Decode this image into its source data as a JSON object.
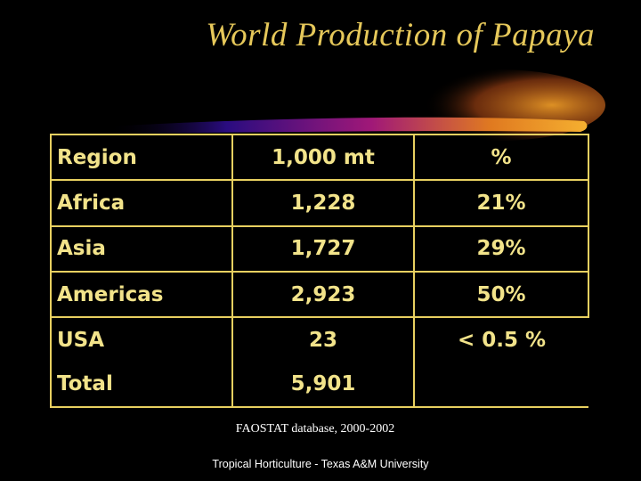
{
  "slide": {
    "title": "World Production of Papaya",
    "source": "FAOSTAT database, 2000-2002",
    "footer": "Tropical Horticulture - Texas A&M University"
  },
  "table": {
    "headers": [
      "Region",
      "1,000 mt",
      "%"
    ],
    "rows": [
      {
        "region": "Africa",
        "amount": "1,228",
        "percent": "21%"
      },
      {
        "region": "Asia",
        "amount": "1,727",
        "percent": "29%"
      },
      {
        "region": "Americas",
        "amount": "2,923",
        "percent": "50%"
      },
      {
        "region": "USA",
        "amount": "23",
        "percent": "< 0.5 %"
      },
      {
        "region": "Total",
        "amount": "5,901",
        "percent": ""
      }
    ]
  },
  "colors": {
    "background": "#000000",
    "title": "#e6c85a",
    "table_text": "#f2e38a",
    "table_border": "#e8d060",
    "swoosh_start": "#3a10a0",
    "swoosh_end": "#f0a020"
  }
}
